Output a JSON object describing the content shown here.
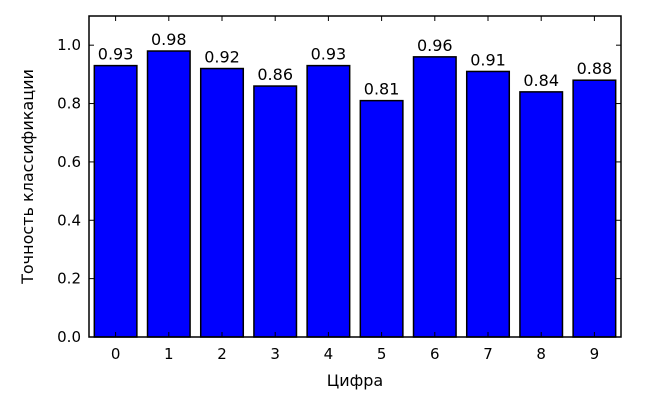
{
  "chart_data": {
    "type": "bar",
    "categories": [
      "0",
      "1",
      "2",
      "3",
      "4",
      "5",
      "6",
      "7",
      "8",
      "9"
    ],
    "values": [
      0.93,
      0.98,
      0.92,
      0.86,
      0.93,
      0.81,
      0.96,
      0.91,
      0.84,
      0.88
    ],
    "data_labels": [
      "0.93",
      "0.98",
      "0.92",
      "0.86",
      "0.93",
      "0.81",
      "0.96",
      "0.91",
      "0.84",
      "0.88"
    ],
    "title": "",
    "xlabel": "Цифра",
    "ylabel": "Точность классификации",
    "ylim": [
      0.0,
      1.1
    ],
    "yticks": [
      0.0,
      0.2,
      0.4,
      0.6,
      0.8,
      1.0
    ],
    "ytick_labels": [
      "0.0",
      "0.2",
      "0.4",
      "0.6",
      "0.8",
      "1.0"
    ],
    "grid": false,
    "legend": "none",
    "colors": {
      "bar_fill": "#0000ff",
      "bar_edge": "#000000",
      "axis": "#000000"
    }
  }
}
